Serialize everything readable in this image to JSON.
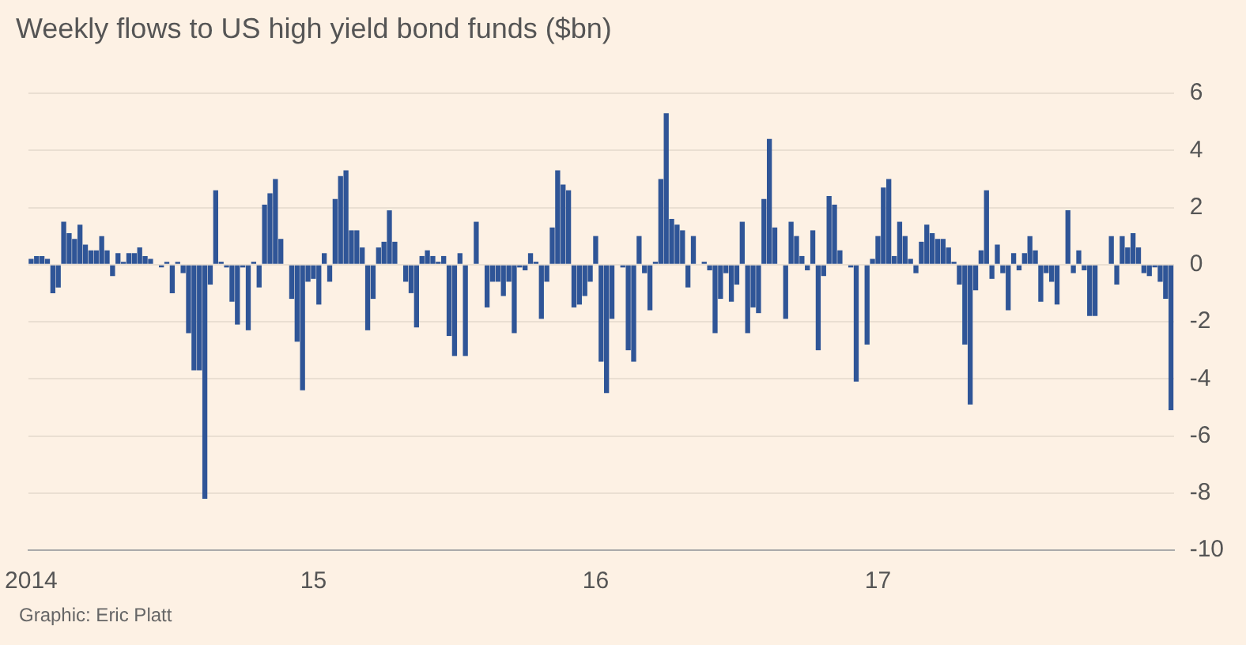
{
  "chart_data": {
    "type": "bar",
    "title": "Weekly flows to US high yield bond funds ($bn)",
    "categories": [
      "2014",
      null,
      null,
      null,
      null,
      null,
      null,
      null,
      null,
      null,
      null,
      null,
      null,
      null,
      null,
      null,
      null,
      null,
      null,
      null,
      null,
      null,
      null,
      null,
      null,
      null,
      null,
      null,
      null,
      null,
      null,
      null,
      null,
      null,
      null,
      null,
      null,
      null,
      null,
      null,
      null,
      null,
      null,
      null,
      null,
      null,
      null,
      null,
      null,
      null,
      null,
      null,
      "15",
      null,
      null,
      null,
      null,
      null,
      null,
      null,
      null,
      null,
      null,
      null,
      null,
      null,
      null,
      null,
      null,
      null,
      null,
      null,
      null,
      null,
      null,
      null,
      null,
      null,
      null,
      null,
      null,
      null,
      null,
      null,
      null,
      null,
      null,
      null,
      null,
      null,
      null,
      null,
      null,
      null,
      null,
      null,
      null,
      null,
      null,
      null,
      null,
      null,
      null,
      null,
      "16",
      null,
      null,
      null,
      null,
      null,
      null,
      null,
      null,
      null,
      null,
      null,
      null,
      null,
      null,
      null,
      null,
      null,
      null,
      null,
      null,
      null,
      null,
      null,
      null,
      null,
      null,
      null,
      null,
      null,
      null,
      null,
      null,
      null,
      null,
      null,
      null,
      null,
      null,
      null,
      null,
      null,
      null,
      null,
      null,
      null,
      null,
      null,
      null,
      null,
      null,
      null,
      "17",
      null,
      null,
      null,
      null,
      null,
      null,
      null,
      null,
      null,
      null,
      null,
      null,
      null,
      null,
      null,
      null,
      null,
      null,
      null,
      null,
      null,
      null,
      null,
      null,
      null,
      null,
      null,
      null,
      null,
      null,
      null,
      null,
      null,
      null,
      null,
      null,
      null,
      null,
      null,
      null,
      null,
      null,
      null,
      null,
      null,
      null,
      null,
      null,
      null,
      null,
      null,
      null,
      null,
      null
    ],
    "values": [
      0.2,
      0.3,
      0.3,
      0.2,
      -1.0,
      -0.8,
      1.5,
      1.1,
      0.9,
      1.4,
      0.7,
      0.5,
      0.5,
      1.0,
      0.5,
      -0.4,
      0.4,
      0.1,
      0.4,
      0.4,
      0.6,
      0.3,
      0.2,
      0,
      -0.1,
      0.1,
      -1.0,
      0.1,
      -0.3,
      -2.4,
      -3.7,
      -3.7,
      -8.2,
      -0.7,
      2.6,
      0.1,
      -0.1,
      -1.3,
      -2.1,
      -0.1,
      -2.3,
      0.1,
      -0.8,
      2.1,
      2.5,
      3.0,
      0.9,
      0,
      -1.2,
      -2.7,
      -4.4,
      -0.6,
      -0.5,
      -1.4,
      0.4,
      -0.6,
      2.3,
      3.1,
      3.3,
      1.2,
      1.2,
      0.6,
      -2.3,
      -1.2,
      0.6,
      0.8,
      1.9,
      0.8,
      0,
      -0.6,
      -1.0,
      -2.2,
      0.3,
      0.5,
      0.3,
      0.1,
      0.3,
      -2.5,
      -3.2,
      0.4,
      -3.2,
      0,
      1.5,
      0,
      -1.5,
      -0.6,
      -0.6,
      -1.1,
      -0.6,
      -2.4,
      -0.1,
      -0.2,
      0.4,
      0.1,
      -1.9,
      -0.6,
      1.3,
      3.3,
      2.8,
      2.6,
      -1.5,
      -1.4,
      -1.1,
      -0.6,
      1.0,
      -3.4,
      -4.5,
      -1.9,
      0,
      -0.1,
      -3.0,
      -3.4,
      1.0,
      -0.3,
      -1.6,
      0.1,
      3.0,
      5.3,
      1.6,
      1.4,
      1.2,
      -0.8,
      1.0,
      0,
      0.1,
      -0.2,
      -2.4,
      -1.2,
      -0.3,
      -1.3,
      -0.7,
      1.5,
      -2.4,
      -1.5,
      -1.7,
      2.3,
      4.4,
      1.3,
      0,
      -1.9,
      1.5,
      1.0,
      0.3,
      -0.2,
      1.2,
      -3.0,
      -0.4,
      2.4,
      2.1,
      0.5,
      0,
      -0.1,
      -4.1,
      0,
      -2.8,
      0.2,
      1.0,
      2.7,
      3.0,
      0.3,
      1.5,
      1.0,
      0.2,
      -0.3,
      0.8,
      1.4,
      1.1,
      0.9,
      0.9,
      0.6,
      0.1,
      -0.7,
      -2.8,
      -4.9,
      -0.9,
      0.5,
      2.6,
      -0.5,
      0.7,
      -0.3,
      -1.6,
      0.4,
      -0.2,
      0.4,
      1.0,
      0.5,
      -1.3,
      -0.3,
      -0.6,
      -1.4,
      0,
      1.9,
      -0.3,
      0.5,
      -0.2,
      -1.8,
      -1.8,
      0,
      0,
      1.0,
      -0.7,
      1.0,
      0.6,
      1.1,
      0.6,
      -0.3,
      -0.4,
      -0.1,
      -0.6,
      -1.2,
      -5.1
    ],
    "color": "#2f5597",
    "ylim": [
      -10,
      6
    ],
    "yticks": [
      -10,
      -8,
      -6,
      -4,
      -2,
      0,
      2,
      4,
      6
    ],
    "grid": "y",
    "legend": false,
    "annotations": [
      "Graphic: Eric Platt"
    ]
  }
}
